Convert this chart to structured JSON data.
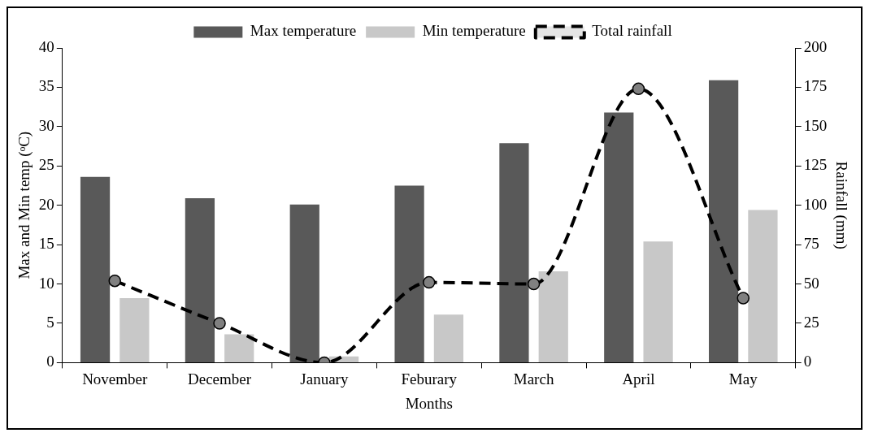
{
  "chart_data": {
    "type": "bar",
    "categories": [
      "November",
      "December",
      "January",
      "Feburary",
      "March",
      "April",
      "May"
    ],
    "series": [
      {
        "name": "Max temperature",
        "color": "#595959",
        "values": [
          23.6,
          20.9,
          20.1,
          22.5,
          27.9,
          31.8,
          35.9
        ]
      },
      {
        "name": "Min temperature",
        "color": "#c8c8c8",
        "values": [
          8.2,
          3.6,
          0.8,
          6.1,
          11.6,
          15.4,
          19.4
        ]
      },
      {
        "name": "Total rainfall",
        "type": "line",
        "axis": "y2",
        "color": "#000000",
        "values": [
          52,
          25,
          0,
          51,
          50,
          174,
          41
        ]
      }
    ],
    "xlabel": "Months",
    "ylabel": "Max and Min temp (ᵒC)",
    "y2label": "Rainfall (mm)",
    "ylim": [
      0,
      40
    ],
    "yticks": [
      0,
      5,
      10,
      15,
      20,
      25,
      30,
      35,
      40
    ],
    "y2lim": [
      0,
      200
    ],
    "y2ticks": [
      0,
      25,
      50,
      75,
      100,
      125,
      150,
      175,
      200
    ],
    "legend": "top",
    "marker": "circle",
    "line_style": "dashed",
    "grid": false
  }
}
